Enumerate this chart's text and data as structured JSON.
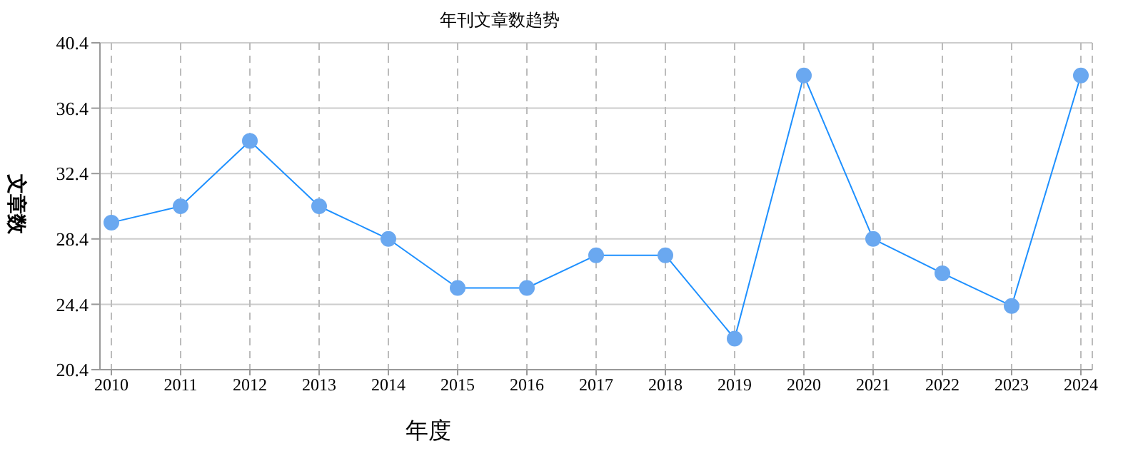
{
  "chart_data": {
    "type": "line",
    "title": "年刊文章数趋势",
    "xlabel": "年度",
    "ylabel": "文章数",
    "categories": [
      "2010",
      "2011",
      "2012",
      "2013",
      "2014",
      "2015",
      "2016",
      "2017",
      "2018",
      "2019",
      "2020",
      "2021",
      "2022",
      "2023",
      "2024"
    ],
    "series": [
      {
        "color": "#1e90ff",
        "values": [
          29.4,
          30.4,
          34.4,
          30.4,
          28.4,
          25.4,
          25.4,
          27.4,
          27.4,
          22.3,
          38.4,
          28.4,
          26.3,
          24.3,
          38.4
        ]
      }
    ],
    "ylim": [
      20.4,
      40.4
    ],
    "yticks": [
      20.4,
      24.4,
      28.4,
      32.4,
      36.4,
      40.4
    ],
    "grid": true,
    "marker": "circle",
    "line_style": "solid",
    "legend": false
  }
}
